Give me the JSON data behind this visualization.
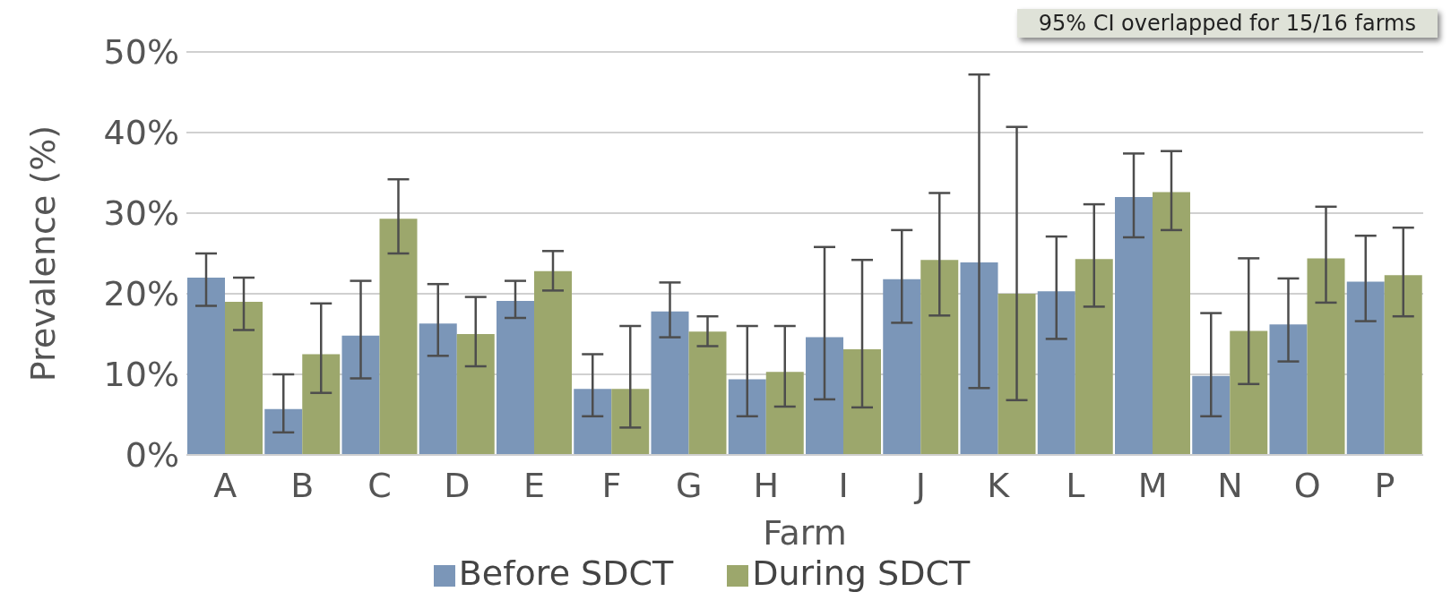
{
  "chart_data": {
    "type": "bar",
    "xlabel": "Farm",
    "ylabel": "Prevalence (%)",
    "categories": [
      "A",
      "B",
      "C",
      "D",
      "E",
      "F",
      "G",
      "H",
      "I",
      "J",
      "K",
      "L",
      "M",
      "N",
      "O",
      "P"
    ],
    "series": [
      {
        "name": "Before SDCT",
        "color": "#7b96b8",
        "values": [
          22,
          5.7,
          14.8,
          16.3,
          19.1,
          8.2,
          17.8,
          9.4,
          14.6,
          21.8,
          23.9,
          20.3,
          32,
          9.8,
          16.2,
          21.5
        ],
        "errors": [
          [
            18.5,
            25
          ],
          [
            2.8,
            10
          ],
          [
            9.5,
            21.6
          ],
          [
            12.3,
            21.2
          ],
          [
            17,
            21.6
          ],
          [
            4.8,
            12.5
          ],
          [
            14.6,
            21.4
          ],
          [
            4.8,
            16
          ],
          [
            6.9,
            25.8
          ],
          [
            16.4,
            27.9
          ],
          [
            8.3,
            47.2
          ],
          [
            14.4,
            27.1
          ],
          [
            27,
            37.4
          ],
          [
            4.8,
            17.6
          ],
          [
            11.6,
            21.9
          ],
          [
            16.6,
            27.2
          ]
        ]
      },
      {
        "name": "During SDCT",
        "color": "#9ca76c",
        "values": [
          19,
          12.5,
          29.3,
          15,
          22.8,
          8.2,
          15.3,
          10.3,
          13.1,
          24.2,
          20,
          24.3,
          32.6,
          15.4,
          24.4,
          22.3
        ],
        "errors": [
          [
            15.5,
            22
          ],
          [
            7.7,
            18.8
          ],
          [
            25,
            34.2
          ],
          [
            11,
            19.6
          ],
          [
            20.4,
            25.3
          ],
          [
            3.4,
            16
          ],
          [
            13.5,
            17.2
          ],
          [
            6,
            16
          ],
          [
            5.9,
            24.2
          ],
          [
            17.3,
            32.5
          ],
          [
            6.8,
            40.7
          ],
          [
            18.4,
            31.1
          ],
          [
            27.9,
            37.7
          ],
          [
            8.8,
            24.4
          ],
          [
            18.9,
            30.8
          ],
          [
            17.2,
            28.2
          ]
        ]
      }
    ],
    "ylim": [
      0,
      50
    ],
    "yticks": [
      {
        "value": 0,
        "label": "0%"
      },
      {
        "value": 10,
        "label": "10%"
      },
      {
        "value": 20,
        "label": "20%"
      },
      {
        "value": 30,
        "label": "30%"
      },
      {
        "value": 40,
        "label": "40%"
      },
      {
        "value": 50,
        "label": "50%"
      }
    ],
    "grid": "y",
    "legend": "bottom",
    "annotations": [
      "95% CI overlapped for 15/16 farms"
    ]
  }
}
